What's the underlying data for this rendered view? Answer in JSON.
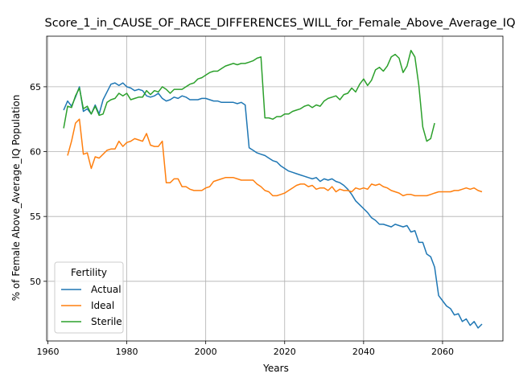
{
  "chart_data": {
    "type": "line",
    "title": "Score_1_in_CAUSE_OF_RACE_DIFFERENCES_WILL_for_Female_Above_Average_IQ",
    "xlabel": "Years",
    "ylabel": "% of Female Above_Average_IQ Population",
    "xlim": [
      1959.7,
      2075.3
    ],
    "ylim": [
      45.4,
      68.9
    ],
    "x_ticks": [
      1960,
      1980,
      2000,
      2020,
      2040,
      2060
    ],
    "y_ticks": [
      50,
      55,
      60,
      65
    ],
    "grid": true,
    "legend": {
      "title": "Fertility",
      "placement": "lower-left"
    },
    "series": [
      {
        "name": "Actual",
        "color": "#1f77b4",
        "x": [
          1964,
          1965,
          1966,
          1967,
          1968,
          1969,
          1970,
          1971,
          1972,
          1973,
          1974,
          1975,
          1976,
          1977,
          1978,
          1979,
          1980,
          1981,
          1982,
          1983,
          1984,
          1985,
          1986,
          1987,
          1988,
          1989,
          1990,
          1991,
          1992,
          1993,
          1994,
          1995,
          1996,
          1997,
          1998,
          1999,
          2000,
          2001,
          2002,
          2003,
          2004,
          2005,
          2006,
          2007,
          2008,
          2009,
          2010,
          2011,
          2012,
          2013,
          2014,
          2015,
          2016,
          2017,
          2018,
          2019,
          2020,
          2021,
          2022,
          2023,
          2024,
          2025,
          2026,
          2027,
          2028,
          2029,
          2030,
          2031,
          2032,
          2033,
          2034,
          2035,
          2036,
          2037,
          2038,
          2039,
          2040,
          2041,
          2042,
          2043,
          2044,
          2045,
          2046,
          2047,
          2048,
          2049,
          2050,
          2051,
          2052,
          2053,
          2054,
          2055,
          2056,
          2057,
          2058,
          2059,
          2060,
          2061,
          2062,
          2063,
          2064,
          2065,
          2066,
          2067,
          2068,
          2069,
          2070
        ],
        "values": [
          63.2,
          63.9,
          63.5,
          64.2,
          65.0,
          63.1,
          63.3,
          62.9,
          63.6,
          62.9,
          64.0,
          64.6,
          65.2,
          65.3,
          65.1,
          65.3,
          65.0,
          64.9,
          64.7,
          64.8,
          64.7,
          64.3,
          64.2,
          64.3,
          64.5,
          64.1,
          63.9,
          64.0,
          64.2,
          64.1,
          64.3,
          64.2,
          64.0,
          64.0,
          64.0,
          64.1,
          64.1,
          64.0,
          63.9,
          63.9,
          63.8,
          63.8,
          63.8,
          63.8,
          63.7,
          63.8,
          63.6,
          60.3,
          60.1,
          59.9,
          59.8,
          59.7,
          59.5,
          59.3,
          59.2,
          58.9,
          58.7,
          58.5,
          58.4,
          58.3,
          58.2,
          58.1,
          58.0,
          57.9,
          58.0,
          57.7,
          57.9,
          57.8,
          57.9,
          57.7,
          57.6,
          57.4,
          57.1,
          56.7,
          56.2,
          55.9,
          55.6,
          55.3,
          54.9,
          54.7,
          54.4,
          54.4,
          54.3,
          54.2,
          54.4,
          54.3,
          54.2,
          54.3,
          53.8,
          53.9,
          53.0,
          53.0,
          52.1,
          51.9,
          51.1,
          48.9,
          48.5,
          48.1,
          47.9,
          47.4,
          47.5,
          46.9,
          47.1,
          46.6,
          46.9,
          46.4,
          46.7
        ]
      },
      {
        "name": "Ideal",
        "color": "#ff7f0e",
        "x": [
          1965,
          1966,
          1967,
          1968,
          1969,
          1970,
          1971,
          1972,
          1973,
          1974,
          1975,
          1976,
          1977,
          1978,
          1979,
          1980,
          1981,
          1982,
          1983,
          1984,
          1985,
          1986,
          1987,
          1988,
          1989,
          1990,
          1991,
          1992,
          1993,
          1994,
          1995,
          1996,
          1997,
          1998,
          1999,
          2000,
          2001,
          2002,
          2003,
          2004,
          2005,
          2006,
          2007,
          2008,
          2009,
          2010,
          2011,
          2012,
          2013,
          2014,
          2015,
          2016,
          2017,
          2018,
          2019,
          2020,
          2021,
          2022,
          2023,
          2024,
          2025,
          2026,
          2027,
          2028,
          2029,
          2030,
          2031,
          2032,
          2033,
          2034,
          2035,
          2036,
          2037,
          2038,
          2039,
          2040,
          2041,
          2042,
          2043,
          2044,
          2045,
          2046,
          2047,
          2048,
          2049,
          2050,
          2051,
          2052,
          2053,
          2054,
          2055,
          2056,
          2057,
          2058,
          2059,
          2060,
          2061,
          2062,
          2063,
          2064,
          2065,
          2066,
          2067,
          2068,
          2069,
          2070
        ],
        "values": [
          59.7,
          60.8,
          62.2,
          62.5,
          59.8,
          59.9,
          58.7,
          59.6,
          59.5,
          59.8,
          60.1,
          60.2,
          60.2,
          60.8,
          60.4,
          60.7,
          60.8,
          61.0,
          60.9,
          60.8,
          61.4,
          60.5,
          60.4,
          60.4,
          60.8,
          57.6,
          57.6,
          57.9,
          57.9,
          57.3,
          57.3,
          57.1,
          57.0,
          57.0,
          57.0,
          57.2,
          57.3,
          57.7,
          57.8,
          57.9,
          58.0,
          58.0,
          58.0,
          57.9,
          57.8,
          57.8,
          57.8,
          57.8,
          57.5,
          57.3,
          57.0,
          56.9,
          56.6,
          56.6,
          56.7,
          56.8,
          57.0,
          57.2,
          57.4,
          57.5,
          57.5,
          57.3,
          57.4,
          57.1,
          57.2,
          57.2,
          57.0,
          57.3,
          56.9,
          57.1,
          57.0,
          57.0,
          56.9,
          57.2,
          57.1,
          57.2,
          57.1,
          57.5,
          57.4,
          57.5,
          57.3,
          57.2,
          57.0,
          56.9,
          56.8,
          56.6,
          56.7,
          56.7,
          56.6,
          56.6,
          56.6,
          56.6,
          56.7,
          56.8,
          56.9,
          56.9,
          56.9,
          56.9,
          57.0,
          57.0,
          57.1,
          57.2,
          57.1,
          57.2,
          57.0,
          56.9
        ]
      },
      {
        "name": "Sterile",
        "color": "#2ca02c",
        "x": [
          1964,
          1965,
          1966,
          1967,
          1968,
          1969,
          1970,
          1971,
          1972,
          1973,
          1974,
          1975,
          1976,
          1977,
          1978,
          1979,
          1980,
          1981,
          1982,
          1983,
          1984,
          1985,
          1986,
          1987,
          1988,
          1989,
          1990,
          1991,
          1992,
          1993,
          1994,
          1995,
          1996,
          1997,
          1998,
          1999,
          2000,
          2001,
          2002,
          2003,
          2004,
          2005,
          2006,
          2007,
          2008,
          2009,
          2010,
          2011,
          2012,
          2013,
          2014,
          2015,
          2016,
          2017,
          2018,
          2019,
          2020,
          2021,
          2022,
          2023,
          2024,
          2025,
          2026,
          2027,
          2028,
          2029,
          2030,
          2031,
          2032,
          2033,
          2034,
          2035,
          2036,
          2037,
          2038,
          2039,
          2040,
          2041,
          2042,
          2043,
          2044,
          2045,
          2046,
          2047,
          2048,
          2049,
          2050,
          2051,
          2052,
          2053,
          2054,
          2055,
          2056,
          2057,
          2058
        ],
        "values": [
          61.8,
          63.5,
          63.4,
          64.3,
          64.9,
          63.3,
          63.5,
          62.9,
          63.5,
          62.8,
          62.9,
          63.8,
          64.0,
          64.1,
          64.5,
          64.3,
          64.5,
          64.0,
          64.1,
          64.2,
          64.2,
          64.7,
          64.4,
          64.7,
          64.6,
          65.0,
          64.8,
          64.5,
          64.8,
          64.8,
          64.8,
          65.0,
          65.2,
          65.3,
          65.6,
          65.7,
          65.9,
          66.1,
          66.2,
          66.2,
          66.4,
          66.6,
          66.7,
          66.8,
          66.7,
          66.8,
          66.8,
          66.9,
          67.0,
          67.2,
          67.3,
          62.6,
          62.6,
          62.5,
          62.7,
          62.7,
          62.9,
          62.9,
          63.1,
          63.2,
          63.3,
          63.5,
          63.6,
          63.4,
          63.6,
          63.5,
          63.9,
          64.1,
          64.2,
          64.3,
          64.0,
          64.4,
          64.5,
          64.9,
          64.6,
          65.2,
          65.6,
          65.1,
          65.5,
          66.3,
          66.5,
          66.2,
          66.6,
          67.3,
          67.5,
          67.2,
          66.1,
          66.6,
          67.8,
          67.3,
          65.1,
          61.9,
          60.8,
          61.0,
          62.2
        ]
      }
    ]
  }
}
